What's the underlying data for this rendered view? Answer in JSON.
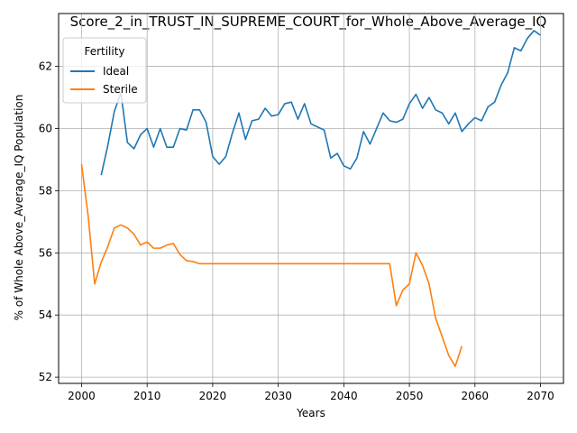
{
  "chart_data": {
    "type": "line",
    "title": "Score_2_in_TRUST_IN_SUPREME_COURT_for_Whole_Above_Average_IQ",
    "xlabel": "Years",
    "ylabel": "% of Whole Above_Average_IQ Population",
    "xlim": [
      1996.5,
      2073.5
    ],
    "ylim": [
      51.8,
      63.7
    ],
    "xticks": [
      2000,
      2010,
      2020,
      2030,
      2040,
      2050,
      2060,
      2070
    ],
    "yticks": [
      52,
      54,
      56,
      58,
      60,
      62
    ],
    "grid": true,
    "legend": {
      "title": "Fertility",
      "placement": "top-left"
    },
    "series": [
      {
        "name": "Ideal",
        "color": "#1f77b4",
        "x": [
          2003,
          2004,
          2005,
          2006,
          2007,
          2008,
          2009,
          2010,
          2011,
          2012,
          2013,
          2014,
          2015,
          2016,
          2017,
          2018,
          2019,
          2020,
          2021,
          2022,
          2023,
          2024,
          2025,
          2026,
          2027,
          2028,
          2029,
          2030,
          2031,
          2032,
          2033,
          2034,
          2035,
          2036,
          2037,
          2038,
          2039,
          2040,
          2041,
          2042,
          2043,
          2044,
          2045,
          2046,
          2047,
          2048,
          2049,
          2050,
          2051,
          2052,
          2053,
          2054,
          2055,
          2056,
          2057,
          2058,
          2059,
          2060,
          2061,
          2062,
          2063,
          2064,
          2065,
          2066,
          2067,
          2068,
          2069,
          2070
        ],
        "y": [
          58.5,
          59.45,
          60.55,
          61.15,
          59.55,
          59.35,
          59.8,
          60.0,
          59.4,
          60.0,
          59.4,
          59.4,
          60.0,
          59.95,
          60.6,
          60.6,
          60.2,
          59.1,
          58.85,
          59.1,
          59.85,
          60.5,
          59.65,
          60.25,
          60.3,
          60.65,
          60.4,
          60.45,
          60.8,
          60.85,
          60.3,
          60.8,
          60.15,
          60.05,
          59.95,
          59.05,
          59.2,
          58.8,
          58.7,
          59.05,
          59.9,
          59.5,
          60.0,
          60.5,
          60.25,
          60.2,
          60.3,
          60.8,
          61.1,
          60.65,
          61.0,
          60.6,
          60.5,
          60.15,
          60.5,
          59.9,
          60.15,
          60.35,
          60.25,
          60.7,
          60.85,
          61.4,
          61.8,
          62.6,
          62.5,
          62.9,
          63.15,
          63.0
        ]
      },
      {
        "name": "Sterile",
        "color": "#ff7f0e",
        "x": [
          2000,
          2001,
          2002,
          2003,
          2004,
          2005,
          2006,
          2007,
          2008,
          2009,
          2010,
          2011,
          2012,
          2013,
          2014,
          2015,
          2016,
          2017,
          2018,
          2019,
          2020,
          2021,
          2022,
          2023,
          2024,
          2025,
          2026,
          2027,
          2028,
          2029,
          2030,
          2031,
          2032,
          2033,
          2034,
          2035,
          2036,
          2037,
          2038,
          2039,
          2040,
          2041,
          2042,
          2043,
          2044,
          2045,
          2046,
          2047,
          2048,
          2049,
          2050,
          2051,
          2052,
          2053,
          2054,
          2055,
          2056,
          2057,
          2058
        ],
        "y": [
          58.85,
          57.2,
          55.0,
          55.7,
          56.2,
          56.8,
          56.9,
          56.8,
          56.6,
          56.25,
          56.35,
          56.15,
          56.15,
          56.25,
          56.3,
          55.95,
          55.75,
          55.72,
          55.65,
          55.65,
          55.65,
          55.65,
          55.65,
          55.65,
          55.65,
          55.65,
          55.65,
          55.65,
          55.65,
          55.65,
          55.65,
          55.65,
          55.65,
          55.65,
          55.65,
          55.65,
          55.65,
          55.65,
          55.65,
          55.65,
          55.65,
          55.65,
          55.65,
          55.65,
          55.65,
          55.65,
          55.65,
          55.65,
          54.3,
          54.8,
          55.0,
          56.0,
          55.6,
          55.0,
          53.9,
          53.3,
          52.7,
          52.35,
          53.0
        ]
      }
    ]
  }
}
